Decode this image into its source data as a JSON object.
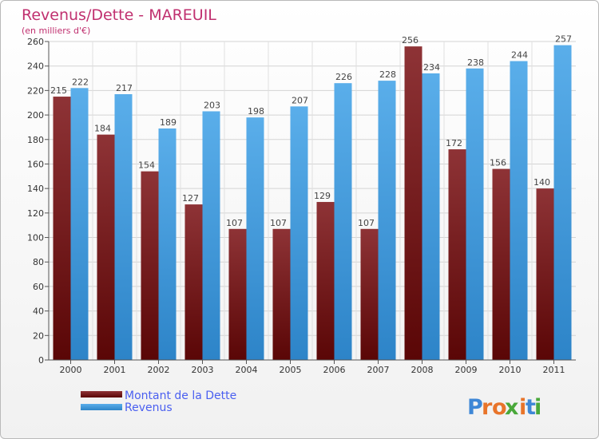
{
  "chart_data": {
    "type": "bar",
    "title": "Revenus/Dette - MAREUIL",
    "subtitle": "(en milliers d'€)",
    "categories": [
      "2000",
      "2001",
      "2002",
      "2003",
      "2004",
      "2005",
      "2006",
      "2007",
      "2008",
      "2009",
      "2010",
      "2011"
    ],
    "series": [
      {
        "name": "Montant de la Dette",
        "color": "#7a1f22",
        "values": [
          215,
          184,
          154,
          127,
          107,
          107,
          129,
          107,
          256,
          172,
          156,
          140
        ]
      },
      {
        "name": "Revenus",
        "color": "#4aa3e6",
        "values": [
          222,
          217,
          189,
          203,
          198,
          207,
          226,
          228,
          234,
          238,
          244,
          257
        ]
      }
    ],
    "ylim": [
      0,
      260
    ],
    "yticks": [
      0,
      20,
      40,
      60,
      80,
      100,
      120,
      140,
      160,
      180,
      200,
      220,
      240,
      260
    ],
    "grid": true,
    "legend_position": "bottom-left"
  },
  "branding": {
    "logo_letters": [
      "P",
      "r",
      "o",
      "x",
      "i",
      "t",
      "i"
    ],
    "logo_colors": [
      "#3e87d6",
      "#e8742a",
      "#e8742a",
      "#49a83a",
      "#e8742a",
      "#3e87d6",
      "#49a83a"
    ]
  }
}
